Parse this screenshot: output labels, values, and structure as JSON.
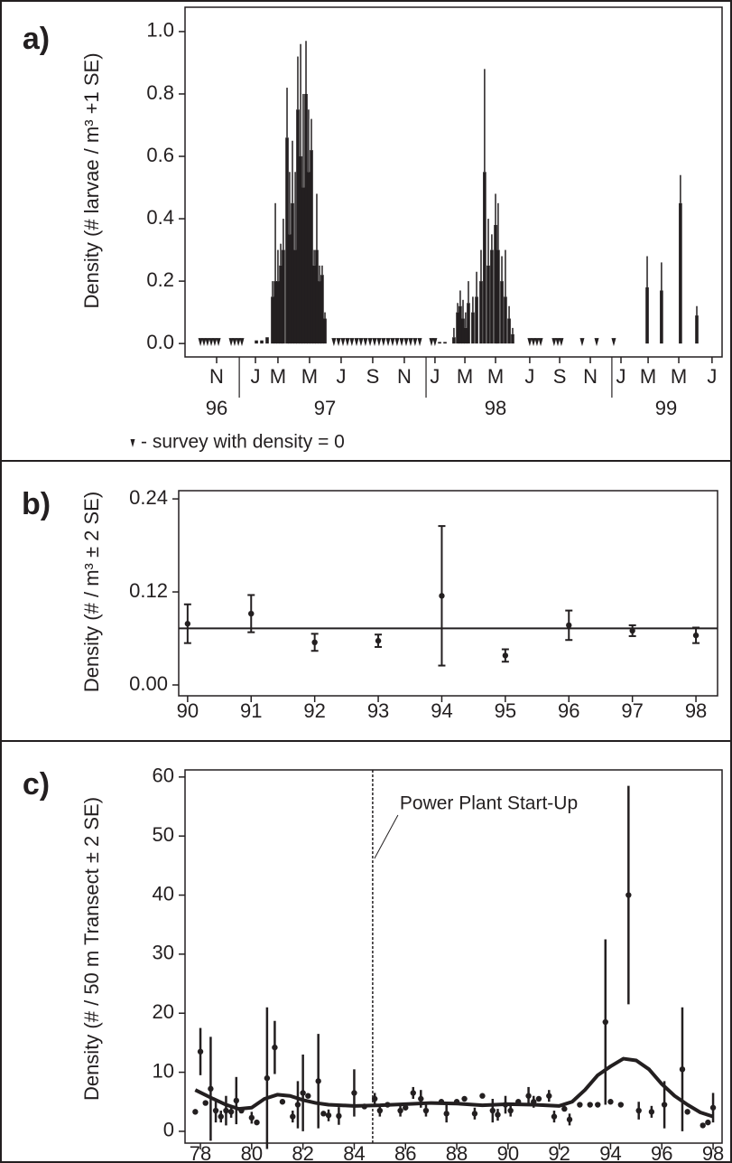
{
  "chart_data": [
    {
      "type": "bar",
      "panel_label": "a)",
      "y_label": "Density (# larvae / m³ +1 SE)",
      "color": "#231f20",
      "x": [
        97.047,
        97.076,
        97.105,
        97.134,
        97.149,
        97.163,
        97.178,
        97.192,
        97.212,
        97.226,
        97.241,
        97.256,
        97.27,
        97.285,
        97.299,
        97.314,
        97.328,
        97.343,
        97.358,
        97.372,
        97.387,
        97.401,
        97.416,
        98.033,
        98.062,
        98.11,
        98.13,
        98.144,
        98.159,
        98.173,
        98.188,
        98.212,
        98.232,
        98.256,
        98.275,
        98.295,
        98.314,
        98.334,
        98.348,
        98.368,
        98.387,
        98.407,
        98.426,
        99.15,
        99.227,
        99.329,
        99.417
      ],
      "values": [
        0.01,
        0.01,
        0.02,
        0.15,
        0.2,
        0.2,
        0.25,
        0.3,
        0.66,
        0.35,
        0.45,
        0.3,
        0.75,
        0.6,
        0.5,
        0.8,
        0.55,
        0.62,
        0.25,
        0.3,
        0.2,
        0.22,
        0.08,
        0.005,
        0.005,
        0.02,
        0.1,
        0.12,
        0.08,
        0.05,
        0.13,
        0.1,
        0.15,
        0.2,
        0.55,
        0.25,
        0.3,
        0.38,
        0.3,
        0.2,
        0.15,
        0.08,
        0.03,
        0.18,
        0.17,
        0.45,
        0.09
      ],
      "errors": [
        0,
        0,
        0,
        0.05,
        0.25,
        0.1,
        0.07,
        0.1,
        0.16,
        0.2,
        0.2,
        0.25,
        0.17,
        0.36,
        0.3,
        0.17,
        0.2,
        0.1,
        0.05,
        0.18,
        0.05,
        0.03,
        0.02,
        0,
        0,
        0.03,
        0.03,
        0.05,
        0.06,
        0.05,
        0.07,
        0.05,
        0.08,
        0.1,
        0.33,
        0.15,
        0.05,
        0.1,
        0.15,
        0.08,
        0.15,
        0.04,
        0.02,
        0.1,
        0.09,
        0.09,
        0.03
      ],
      "zero_surveys": [
        96.746,
        96.765,
        96.784,
        96.804,
        96.823,
        96.843,
        96.911,
        96.93,
        96.95,
        96.969,
        97.464,
        97.489,
        97.513,
        97.537,
        97.561,
        97.586,
        97.61,
        97.634,
        97.659,
        97.683,
        97.707,
        97.731,
        97.756,
        97.78,
        97.804,
        97.829,
        97.853,
        97.877,
        97.901,
        97.926,
        97.989,
        98.008,
        98.518,
        98.538,
        98.557,
        98.577,
        98.649,
        98.669,
        98.688,
        98.8,
        98.878,
        98.97
      ],
      "zero_note": "- survey with density = 0",
      "xlim": [
        96.663,
        99.553
      ],
      "xticks": [
        {
          "value": 96.833,
          "label": "N"
        },
        {
          "value": 97.042,
          "label": "J"
        },
        {
          "value": 97.163,
          "label": "M"
        },
        {
          "value": 97.333,
          "label": "M"
        },
        {
          "value": 97.503,
          "label": "J"
        },
        {
          "value": 97.673,
          "label": "S"
        },
        {
          "value": 97.843,
          "label": "N"
        },
        {
          "value": 98.008,
          "label": "J"
        },
        {
          "value": 98.169,
          "label": "M"
        },
        {
          "value": 98.334,
          "label": "M"
        },
        {
          "value": 98.518,
          "label": "J"
        },
        {
          "value": 98.679,
          "label": "S"
        },
        {
          "value": 98.844,
          "label": "N"
        },
        {
          "value": 99.009,
          "label": "J"
        },
        {
          "value": 99.155,
          "label": "M"
        },
        {
          "value": 99.32,
          "label": "M"
        },
        {
          "value": 99.499,
          "label": "J"
        }
      ],
      "year_labels": [
        {
          "value": 96.833,
          "label": "96"
        },
        {
          "value": 97.416,
          "label": "97"
        },
        {
          "value": 98.334,
          "label": "98"
        },
        {
          "value": 99.252,
          "label": "99"
        }
      ],
      "year_breaks": [
        96.955,
        97.96,
        98.96
      ],
      "ylim": [
        -0.043,
        1.078
      ],
      "yticks": [
        {
          "value": 0,
          "label": "0.0"
        },
        0.2,
        0.4,
        0.6,
        0.8,
        {
          "value": 1,
          "label": "1.0"
        }
      ]
    },
    {
      "type": "scatter",
      "panel_label": "b)",
      "y_label": "Density (# / m³ ± 2 SE)",
      "color": "#231f20",
      "x": [
        90,
        91,
        92,
        93,
        94,
        95,
        96,
        97,
        98
      ],
      "values": [
        0.079,
        0.092,
        0.055,
        0.057,
        0.115,
        0.038,
        0.077,
        0.07,
        0.064
      ],
      "errors": [
        0.025,
        0.024,
        0.011,
        0.008,
        0.09,
        0.008,
        0.019,
        0.007,
        0.01
      ],
      "reference_line": 0.073,
      "xlim": [
        89.86,
        98.34
      ],
      "xticks": [
        90,
        91,
        92,
        93,
        94,
        95,
        96,
        97,
        98
      ],
      "ylim": [
        -0.014,
        0.2506
      ],
      "yticks": [
        {
          "value": 0,
          "label": "0.00"
        },
        0.12,
        0.24
      ]
    },
    {
      "type": "scatter",
      "panel_label": "c)",
      "y_label": "Density (# / 50 m Transect ± 2 SE)",
      "color": "#231f20",
      "x": [
        77.8,
        78.0,
        78.2,
        78.4,
        78.6,
        78.8,
        79.0,
        79.2,
        79.4,
        79.6,
        80.0,
        80.2,
        80.6,
        80.9,
        81.2,
        81.6,
        81.8,
        82.0,
        82.2,
        82.6,
        82.8,
        83.0,
        83.4,
        84.0,
        84.4,
        84.8,
        85.0,
        85.3,
        85.8,
        86.0,
        86.3,
        86.6,
        86.8,
        87.4,
        87.6,
        88.0,
        88.3,
        88.7,
        89.0,
        89.4,
        89.6,
        89.9,
        90.1,
        90.4,
        90.8,
        91.0,
        91.2,
        91.6,
        91.8,
        92.2,
        92.4,
        92.8,
        93.2,
        93.5,
        93.8,
        94.0,
        94.4,
        94.7,
        95.1,
        95.6,
        96.1,
        96.8,
        97.0,
        97.6,
        97.8,
        98.0
      ],
      "values": [
        3.3,
        13.5,
        4.8,
        7.2,
        3.5,
        2.5,
        3.5,
        3.3,
        5.2,
        3.5,
        2.3,
        1.5,
        9,
        14.2,
        5,
        2.5,
        4.5,
        6.5,
        6,
        8.5,
        3,
        2.7,
        2.6,
        6.5,
        4.2,
        5.5,
        3.5,
        4.5,
        3.5,
        4,
        6.5,
        5.5,
        3.5,
        5,
        3,
        5,
        5.5,
        3,
        6,
        3.5,
        2.8,
        4.5,
        3.5,
        5,
        6,
        5,
        5.5,
        6,
        2.5,
        3.8,
        2,
        4.5,
        4.5,
        4.5,
        18.5,
        5,
        4.5,
        40,
        3.5,
        3.3,
        4.5,
        10.5,
        3.3,
        1,
        1.5,
        4
      ],
      "errors": [
        0,
        4,
        0,
        8.8,
        2,
        1,
        2.5,
        1,
        4,
        0,
        1,
        0,
        12,
        4.5,
        0,
        1,
        4,
        6.5,
        0,
        8,
        0,
        1,
        1.5,
        4,
        0,
        1,
        1,
        0,
        1,
        0,
        1,
        1.5,
        1,
        0,
        1.5,
        0,
        0,
        1,
        0,
        2,
        1,
        1.5,
        1,
        0,
        1.5,
        1,
        0,
        1,
        1,
        0,
        1,
        0,
        0,
        0,
        14,
        0,
        0,
        18.5,
        1.5,
        1,
        4,
        10.5,
        0,
        0,
        0,
        2.5
      ],
      "curve": {
        "x": [
          77.8,
          78.5,
          79,
          79.5,
          80,
          80.5,
          81,
          81.5,
          82,
          82.5,
          83,
          84,
          85,
          86,
          87,
          88,
          89,
          90,
          91,
          92,
          92.5,
          93,
          93.5,
          94,
          94.5,
          95,
          95.5,
          96,
          96.5,
          97,
          97.5,
          98
        ],
        "values": [
          7,
          5.5,
          4.5,
          3.8,
          4,
          5.5,
          6.2,
          6,
          5.3,
          4.8,
          4.5,
          4.3,
          4.4,
          4.6,
          4.8,
          4.7,
          4.4,
          4.6,
          4.5,
          4.3,
          5,
          7,
          9.5,
          11,
          12.3,
          12,
          10.5,
          8,
          6,
          4.5,
          3.2,
          2.5
        ]
      },
      "start_up": {
        "x": 84.72,
        "label": "Power Plant Start-Up"
      },
      "xlim": [
        77.4,
        98.35
      ],
      "xticks": [
        78,
        80,
        82,
        84,
        86,
        88,
        90,
        92,
        94,
        96,
        98
      ],
      "ylim": [
        -2,
        61.2
      ],
      "yticks": [
        0,
        10,
        20,
        30,
        40,
        50,
        60
      ]
    }
  ]
}
